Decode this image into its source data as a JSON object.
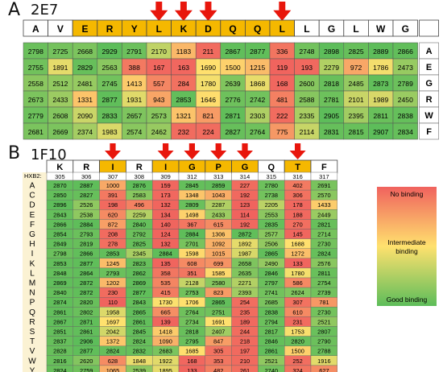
{
  "panel_a": {
    "letter": "A",
    "title": "2E7",
    "header": [
      "A",
      "V",
      "E",
      "R",
      "Y",
      "L",
      "K",
      "D",
      "Q",
      "Q",
      "L",
      "L",
      "G",
      "L",
      "W",
      "G"
    ],
    "header_highlight": [
      false,
      false,
      true,
      true,
      true,
      true,
      true,
      true,
      true,
      true,
      true,
      false,
      false,
      false,
      false,
      false
    ],
    "arrow_columns": [
      5,
      6,
      7,
      10
    ],
    "right_labels": [
      "A",
      "E",
      "G",
      "R",
      "W",
      "F"
    ]
  },
  "panel_b": {
    "letter": "B",
    "title": "1F10",
    "row_label_title": "HXB2:",
    "header": [
      "K",
      "R",
      "I",
      "R",
      "I",
      "G",
      "P",
      "G",
      "Q",
      "T",
      "F"
    ],
    "header_highlight": [
      false,
      false,
      true,
      false,
      true,
      true,
      true,
      true,
      false,
      true,
      false
    ],
    "positions": [
      "305",
      "306",
      "307",
      "308",
      "309",
      "312",
      "313",
      "314",
      "315",
      "316",
      "317"
    ],
    "arrow_columns": [
      2,
      4,
      5,
      6,
      7,
      9
    ],
    "row_labels": [
      "A",
      "C",
      "D",
      "E",
      "F",
      "G",
      "H",
      "I",
      "K",
      "L",
      "M",
      "N",
      "P",
      "Q",
      "R",
      "S",
      "T",
      "V",
      "W",
      "Y"
    ]
  },
  "legend": {
    "top": "No binding",
    "middle": "Intermediate binding",
    "bottom": "Good binding"
  },
  "colors": {
    "header_highlight": "#f5b800",
    "arrow": "#e8160c",
    "bad": "#f0625e",
    "mid": "#ffe16e",
    "good": "#5dbd5a"
  },
  "chart_data": [
    {
      "type": "heatmap",
      "title": "2E7",
      "columns": [
        "A",
        "V",
        "E",
        "R",
        "Y",
        "L",
        "K",
        "D",
        "Q",
        "Q",
        "L",
        "L",
        "G",
        "L",
        "W",
        "G"
      ],
      "rows": [
        "A",
        "E",
        "G",
        "R",
        "W",
        "F"
      ],
      "values": [
        [
          2798,
          2725,
          2668,
          2929,
          2791,
          2170,
          1183,
          211,
          2867,
          2877,
          336,
          2748,
          2898,
          2825,
          2889,
          2866
        ],
        [
          2755,
          1891,
          2829,
          2563,
          388,
          167,
          163,
          1690,
          1500,
          1215,
          119,
          193,
          2279,
          972,
          1786,
          2473
        ],
        [
          2558,
          2512,
          2481,
          2745,
          1413,
          557,
          284,
          1780,
          2639,
          1868,
          168,
          2600,
          2818,
          2485,
          2873,
          2789
        ],
        [
          2673,
          2433,
          1331,
          2877,
          1931,
          943,
          2853,
          1646,
          2776,
          2742,
          481,
          2588,
          2781,
          2101,
          1989,
          2450
        ],
        [
          2779,
          2608,
          2090,
          2833,
          2657,
          2573,
          1321,
          821,
          2871,
          2303,
          222,
          2335,
          2905,
          2395,
          2811,
          2838
        ],
        [
          2681,
          2669,
          2374,
          1983,
          2574,
          2462,
          232,
          224,
          2827,
          2764,
          775,
          2114,
          2831,
          2815,
          2907,
          2834
        ]
      ]
    },
    {
      "type": "heatmap",
      "title": "1F10",
      "columns": [
        "K",
        "R",
        "I",
        "R",
        "I",
        "G",
        "P",
        "G",
        "Q",
        "T",
        "F"
      ],
      "column_positions": [
        305,
        306,
        307,
        308,
        309,
        312,
        313,
        314,
        315,
        316,
        317
      ],
      "rows": [
        "A",
        "C",
        "D",
        "E",
        "F",
        "G",
        "H",
        "I",
        "K",
        "L",
        "M",
        "N",
        "P",
        "Q",
        "R",
        "S",
        "T",
        "V",
        "W",
        "Y"
      ],
      "values": [
        [
          2870,
          2887,
          1000,
          2876,
          159,
          2845,
          2859,
          227,
          2780,
          402,
          2691
        ],
        [
          2850,
          2827,
          391,
          2583,
          173,
          1348,
          1043,
          192,
          2738,
          306,
          2570
        ],
        [
          2896,
          2526,
          198,
          496,
          132,
          2809,
          2287,
          123,
          2205,
          178,
          1433
        ],
        [
          2843,
          2538,
          620,
          2259,
          134,
          1498,
          2433,
          114,
          2553,
          188,
          2449
        ],
        [
          2866,
          2884,
          872,
          2840,
          140,
          367,
          615,
          192,
          2835,
          270,
          2821
        ],
        [
          2854,
          2793,
          208,
          2792,
          124,
          2884,
          1306,
          2872,
          2577,
          145,
          2714
        ],
        [
          2849,
          2819,
          278,
          2825,
          132,
          2701,
          1092,
          1892,
          2506,
          1688,
          2730
        ],
        [
          2798,
          2866,
          2853,
          2345,
          2884,
          1598,
          1015,
          1987,
          2865,
          1272,
          2824
        ],
        [
          2853,
          2877,
          1245,
          2823,
          135,
          608,
          699,
          2658,
          2490,
          133,
          2576
        ],
        [
          2848,
          2864,
          2793,
          2862,
          358,
          351,
          1585,
          2635,
          2846,
          1780,
          2811
        ],
        [
          2869,
          2872,
          1202,
          2869,
          535,
          2128,
          2580,
          2271,
          2797,
          586,
          2754
        ],
        [
          2840,
          2872,
          230,
          2877,
          415,
          2753,
          823,
          2393,
          2741,
          2624,
          2739
        ],
        [
          2874,
          2820,
          110,
          2843,
          1730,
          1706,
          2865,
          254,
          2685,
          307,
          781
        ],
        [
          2861,
          2802,
          1958,
          2865,
          665,
          2764,
          2751,
          235,
          2838,
          610,
          2730
        ],
        [
          2867,
          2871,
          1697,
          2861,
          139,
          2734,
          1691,
          189,
          2794,
          231,
          2521
        ],
        [
          2851,
          2861,
          2042,
          2845,
          1418,
          2818,
          2407,
          244,
          2817,
          1753,
          2807
        ],
        [
          2837,
          2906,
          1372,
          2824,
          1090,
          2795,
          847,
          218,
          2846,
          2820,
          2790
        ],
        [
          2828,
          2877,
          2824,
          2832,
          2683,
          1685,
          305,
          197,
          2861,
          1500,
          2788
        ],
        [
          2816,
          2620,
          628,
          1848,
          1922,
          168,
          353,
          210,
          2521,
          252,
          1916
        ],
        [
          2824,
          2759,
          1065,
          2539,
          1895,
          133,
          482,
          261,
          2740,
          324,
          627
        ]
      ]
    }
  ]
}
